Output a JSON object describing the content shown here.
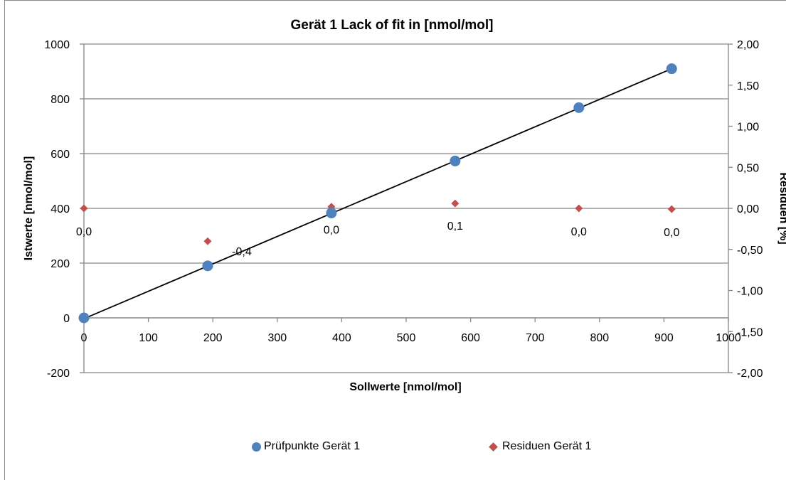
{
  "chart_data": {
    "type": "scatter",
    "title": "Gerät 1 Lack of fit in [nmol/mol]",
    "xlabel": "Sollwerte [nmol/mol]",
    "ylabel": "Istwerte [nmol/mol]",
    "y2label": "Residuen [%]",
    "xlim": [
      0,
      1000
    ],
    "ylim": [
      -200,
      1000
    ],
    "y2lim": [
      -2.0,
      2.0
    ],
    "x_ticks": [
      "0",
      "100",
      "200",
      "300",
      "400",
      "500",
      "600",
      "700",
      "800",
      "900",
      "1000"
    ],
    "y_ticks": [
      "-200",
      "0",
      "200",
      "400",
      "600",
      "800",
      "1000"
    ],
    "y2_ticks": [
      "-2,00",
      "-1,50",
      "-1,00",
      "-0,50",
      "0,00",
      "0,50",
      "1,00",
      "1,50",
      "2,00"
    ],
    "grid": "horizontal",
    "legend_position": "bottom",
    "series": [
      {
        "name": "Prüfpunkte Gerät 1",
        "axis": "left",
        "marker": "circle",
        "color": "#4f81bd",
        "x": [
          0,
          192,
          384,
          576,
          768,
          912
        ],
        "y": [
          0,
          190,
          383,
          573,
          768,
          910
        ]
      },
      {
        "name": "Residuen Gerät 1",
        "axis": "right",
        "marker": "diamond",
        "color": "#c0504d",
        "x": [
          0,
          192,
          384,
          576,
          768,
          912
        ],
        "y": [
          0.0,
          -0.4,
          0.02,
          0.06,
          0.0,
          -0.01
        ],
        "labels": [
          "0,0",
          "-0,4",
          "0,0",
          "0,1",
          "0,0",
          "0,0"
        ]
      }
    ],
    "trendline": {
      "color": "#000000",
      "x": [
        0,
        912
      ],
      "y": [
        -3,
        910
      ]
    }
  }
}
